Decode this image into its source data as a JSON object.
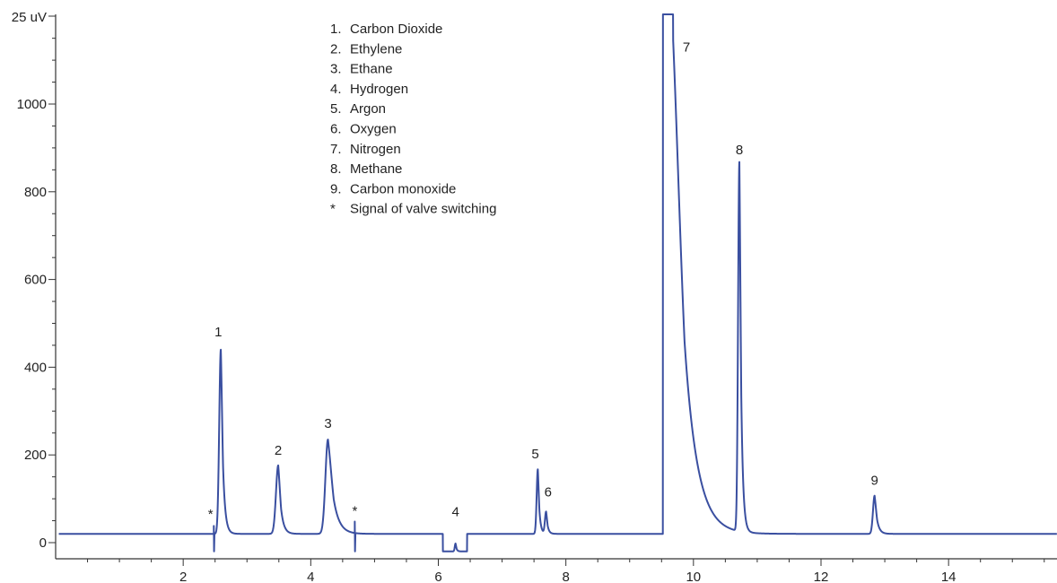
{
  "chart_data": {
    "type": "line",
    "title": "",
    "xlabel": "",
    "ylabel": "",
    "y_unit_label": "25 uV",
    "xlim": [
      0,
      15.7
    ],
    "ylim": [
      -40,
      1210
    ],
    "x_ticks": [
      2,
      4,
      6,
      8,
      10,
      12,
      14
    ],
    "y_ticks": [
      0,
      200,
      400,
      600,
      800,
      1000
    ],
    "x_minor_step": 0.5,
    "y_minor_step": 50,
    "grid": false,
    "line_color": "#3a4fa0",
    "baseline": 20,
    "series": [
      {
        "name": "",
        "peaks": [
          {
            "label": "1",
            "rt": 2.59,
            "height": 440,
            "sigma_left": 0.025,
            "sigma_right": 0.035
          },
          {
            "label": "2",
            "rt": 3.49,
            "height": 176,
            "sigma_left": 0.035,
            "sigma_right": 0.045
          },
          {
            "label": "3",
            "rt": 4.27,
            "height": 235,
            "sigma_left": 0.04,
            "sigma_right": 0.09
          },
          {
            "label": "4",
            "rt": 6.27,
            "height": 38,
            "sigma_left": 0.012,
            "sigma_right": 0.016
          },
          {
            "label": "5",
            "rt": 7.56,
            "height": 167,
            "sigma_left": 0.018,
            "sigma_right": 0.025
          },
          {
            "label": "6",
            "rt": 7.69,
            "height": 70,
            "sigma_left": 0.018,
            "sigma_right": 0.025
          },
          {
            "label": "7",
            "rt": 9.66,
            "height": 1215,
            "sigma_left": 0.02,
            "sigma_right": 0.2
          },
          {
            "label": "8",
            "rt": 10.72,
            "height": 862,
            "sigma_left": 0.02,
            "sigma_right": 0.03
          },
          {
            "label": "9",
            "rt": 12.84,
            "height": 107,
            "sigma_left": 0.025,
            "sigma_right": 0.04
          }
        ],
        "valve_switches": [
          {
            "t": 2.48,
            "up": 38,
            "down": -20
          },
          {
            "t": 4.69,
            "up": 48,
            "down": -20
          }
        ],
        "dips": [
          {
            "start": 6.07,
            "end": 6.45,
            "level": -20
          },
          {
            "start": 9.52,
            "end": 9.68,
            "level": 1210
          }
        ]
      }
    ],
    "peak_labels": [
      {
        "text": "1",
        "x": 2.55,
        "y": 470
      },
      {
        "text": "2",
        "x": 3.49,
        "y": 200
      },
      {
        "text": "3",
        "x": 4.27,
        "y": 262
      },
      {
        "text": "4",
        "x": 6.27,
        "y": 60
      },
      {
        "text": "5",
        "x": 7.52,
        "y": 192
      },
      {
        "text": "6",
        "x": 7.72,
        "y": 105
      },
      {
        "text": "7",
        "x": 9.89,
        "y": 1120
      },
      {
        "text": "8",
        "x": 10.72,
        "y": 885
      },
      {
        "text": "9",
        "x": 12.84,
        "y": 132
      }
    ],
    "star_labels": [
      {
        "text": "*",
        "x": 2.43,
        "y": 55
      },
      {
        "text": "*",
        "x": 4.69,
        "y": 62
      }
    ],
    "legend": {
      "position": "top-center",
      "entries": [
        {
          "num": "1.",
          "name": "Carbon Dioxide"
        },
        {
          "num": "2.",
          "name": "Ethylene"
        },
        {
          "num": "3.",
          "name": "Ethane"
        },
        {
          "num": "4.",
          "name": "Hydrogen"
        },
        {
          "num": "5.",
          "name": "Argon"
        },
        {
          "num": "6.",
          "name": "Oxygen"
        },
        {
          "num": "7.",
          "name": "Nitrogen"
        },
        {
          "num": "8.",
          "name": "Methane"
        },
        {
          "num": "9.",
          "name": "Carbon monoxide"
        },
        {
          "num": "*",
          "name": "Signal of valve switching"
        }
      ]
    }
  }
}
